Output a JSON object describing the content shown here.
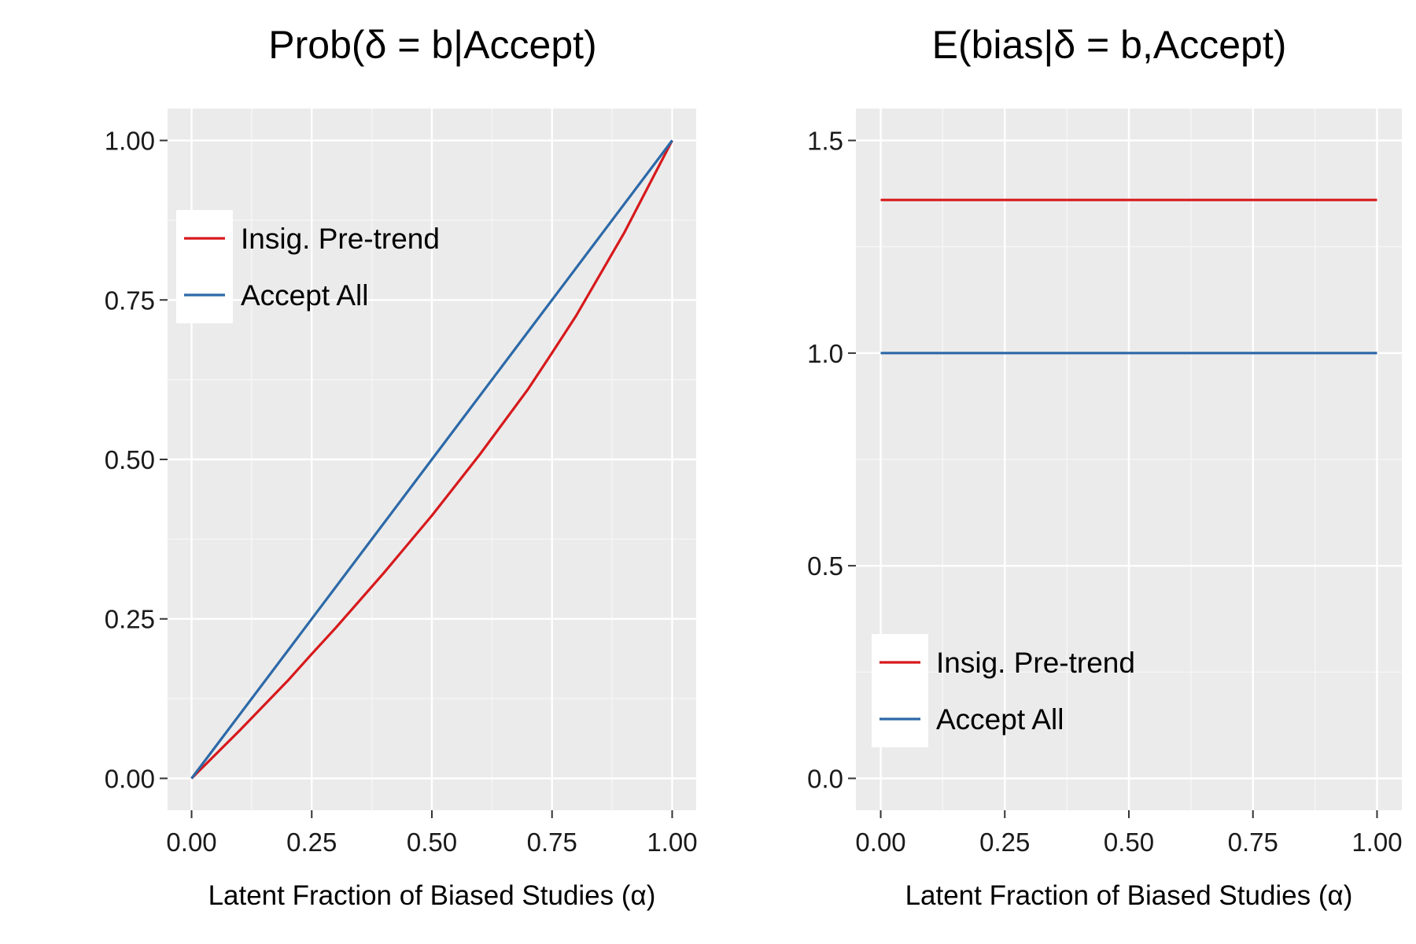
{
  "chart_data": [
    {
      "type": "line",
      "title": "Prob(δ = b|Accept)",
      "xlabel": "Latent Fraction of Biased Studies (α)",
      "ylabel": "",
      "xlim": [
        -0.05,
        1.05
      ],
      "ylim": [
        -0.05,
        1.05
      ],
      "xticks": [
        "0.00",
        "0.25",
        "0.50",
        "0.75",
        "1.00"
      ],
      "yticks": [
        "0.00",
        "0.25",
        "0.50",
        "0.75",
        "1.00"
      ],
      "grid": true,
      "legend_position": "top-left",
      "series": [
        {
          "name": "Insig. Pre-trend",
          "color": "#d7191c",
          "x": [
            0,
            0.1,
            0.2,
            0.25,
            0.3,
            0.4,
            0.5,
            0.6,
            0.7,
            0.75,
            0.8,
            0.9,
            1.0
          ],
          "y": [
            0,
            0.075,
            0.153,
            0.195,
            0.236,
            0.322,
            0.412,
            0.508,
            0.61,
            0.667,
            0.725,
            0.855,
            1.0
          ]
        },
        {
          "name": "Accept All",
          "color": "#2c69a8",
          "x": [
            0,
            0.25,
            0.5,
            0.75,
            1.0
          ],
          "y": [
            0,
            0.25,
            0.5,
            0.75,
            1.0
          ]
        }
      ]
    },
    {
      "type": "line",
      "title": "E(bias|δ = b,Accept)",
      "xlabel": "Latent Fraction of Biased Studies (α)",
      "ylabel": "",
      "xlim": [
        -0.05,
        1.05
      ],
      "ylim": [
        -0.075,
        1.575
      ],
      "xticks": [
        "0.00",
        "0.25",
        "0.50",
        "0.75",
        "1.00"
      ],
      "yticks": [
        "0.0",
        "0.5",
        "1.0",
        "1.5"
      ],
      "grid": true,
      "legend_position": "bottom-left",
      "series": [
        {
          "name": "Insig. Pre-trend",
          "color": "#d7191c",
          "x": [
            0,
            1.0
          ],
          "y": [
            1.36,
            1.36
          ]
        },
        {
          "name": "Accept All",
          "color": "#2c69a8",
          "x": [
            0,
            1.0
          ],
          "y": [
            1.0,
            1.0
          ]
        }
      ]
    }
  ]
}
